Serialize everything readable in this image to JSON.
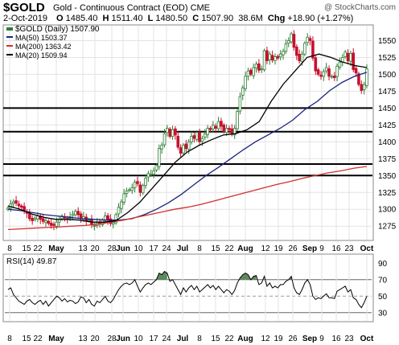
{
  "header": {
    "symbol": "$GOLD",
    "description": "Gold - Continuous Contract (EOD)",
    "exchange": "CME",
    "copyright": "@ StockCharts.com",
    "date": "2-Oct-2019",
    "open_label": "O",
    "open": "1485.40",
    "high_label": "H",
    "high": "1511.40",
    "low_label": "L",
    "low": "1480.50",
    "close_label": "C",
    "close": "1507.90",
    "volume": "38.6M",
    "change_label": "Chg",
    "change": "+18.90 (+1.27%)"
  },
  "legend": {
    "price": "$GOLD (Daily) 1507.90",
    "ma50": "MA(50) 1503.37",
    "ma200": "MA(200) 1363.42",
    "ma20": "MA(20) 1509.94"
  },
  "rsi": {
    "label": "RSI(14) 49.87"
  },
  "colors": {
    "up": "#2e7d32",
    "down": "#c8102e",
    "ma50": "#1a237e",
    "ma200": "#d32f2f",
    "ma20": "#000000",
    "rsi_fill": "#5c8a5c",
    "grid": "#e3e3e3"
  },
  "chart_data": [
    {
      "type": "candlestick",
      "title": "$GOLD (Daily) 1507.90",
      "x_tick_labels": [
        "8",
        "15",
        "22",
        "May",
        "13",
        "20",
        "28",
        "Jun",
        "10",
        "17",
        "24",
        "Jul",
        "8",
        "15",
        "22",
        "Aug",
        "12",
        "19",
        "26",
        "Sep",
        "9",
        "16",
        "23",
        "Oct"
      ],
      "y_ticks": [
        1275,
        1300,
        1325,
        1350,
        1375,
        1400,
        1425,
        1450,
        1475,
        1500,
        1525,
        1550
      ],
      "ylim": [
        1255,
        1572
      ],
      "horizontal_lines": [
        1450,
        1415,
        1367,
        1350
      ],
      "close_approx": [
        1302,
        1308,
        1311,
        1309,
        1305,
        1303,
        1298,
        1294,
        1286,
        1283,
        1287,
        1290,
        1285,
        1282,
        1283,
        1279,
        1276,
        1276,
        1281,
        1285,
        1290,
        1287,
        1286,
        1289,
        1293,
        1297,
        1292,
        1287,
        1289,
        1283,
        1284,
        1277,
        1276,
        1280,
        1279,
        1284,
        1290,
        1284,
        1279,
        1280,
        1292,
        1303,
        1311,
        1323,
        1327,
        1329,
        1332,
        1340,
        1338,
        1325,
        1335,
        1346,
        1353,
        1352,
        1357,
        1365,
        1390,
        1395,
        1412,
        1420,
        1408,
        1418,
        1410,
        1392,
        1383,
        1395,
        1390,
        1400,
        1408,
        1405,
        1414,
        1400,
        1405,
        1412,
        1420,
        1418,
        1425,
        1420,
        1430,
        1423,
        1415,
        1420,
        1418,
        1412,
        1420,
        1445,
        1467,
        1480,
        1497,
        1505,
        1500,
        1510,
        1515,
        1506,
        1508,
        1535,
        1520,
        1530,
        1521,
        1526,
        1524,
        1530,
        1534,
        1545,
        1550,
        1560,
        1540,
        1528,
        1520,
        1530,
        1546,
        1555,
        1550,
        1524,
        1505,
        1500,
        1497,
        1504,
        1510,
        1497,
        1497,
        1495,
        1512,
        1518,
        1525,
        1533,
        1520,
        1531,
        1507,
        1502,
        1485,
        1476,
        1485,
        1507.9
      ],
      "series": [
        {
          "name": "MA(50)",
          "values_approx": [
            1300,
            1298,
            1295,
            1292,
            1290,
            1288,
            1286,
            1285,
            1284,
            1284,
            1286,
            1292,
            1300,
            1310,
            1322,
            1336,
            1350,
            1362,
            1375,
            1388,
            1400,
            1410,
            1420,
            1432,
            1448,
            1460,
            1476,
            1488,
            1497,
            1503
          ]
        },
        {
          "name": "MA(200)",
          "values_approx": [
            1270,
            1271,
            1272,
            1273,
            1274,
            1275,
            1276,
            1278,
            1281,
            1284,
            1288,
            1292,
            1296,
            1300,
            1303,
            1307,
            1312,
            1317,
            1322,
            1327,
            1332,
            1337,
            1341,
            1346,
            1350,
            1354,
            1357,
            1361,
            1363.4
          ]
        },
        {
          "name": "MA(20)",
          "values_approx": [
            1305,
            1300,
            1293,
            1288,
            1285,
            1285,
            1284,
            1281,
            1281,
            1283,
            1295,
            1310,
            1330,
            1350,
            1370,
            1385,
            1395,
            1403,
            1410,
            1412,
            1418,
            1430,
            1460,
            1485,
            1505,
            1525,
            1530,
            1525,
            1518,
            1513,
            1510
          ]
        }
      ]
    },
    {
      "type": "line",
      "title": "RSI(14) 49.87",
      "y_ticks": [
        30,
        50,
        70,
        90
      ],
      "ylim": [
        20,
        100
      ],
      "reference_lines": [
        70,
        50,
        30
      ],
      "values_approx": [
        58,
        60,
        52,
        48,
        44,
        42,
        40,
        44,
        46,
        42,
        40,
        43,
        45,
        40,
        44,
        38,
        42,
        46,
        50,
        48,
        44,
        47,
        43,
        45,
        44,
        41,
        43,
        49,
        48,
        42,
        46,
        40,
        38,
        44,
        42,
        46,
        50,
        44,
        42,
        46,
        52,
        58,
        62,
        65,
        66,
        64,
        66,
        70,
        62,
        55,
        60,
        64,
        66,
        64,
        67,
        70,
        78,
        76,
        80,
        78,
        68,
        70,
        64,
        58,
        52,
        60,
        55,
        60,
        63,
        58,
        62,
        55,
        58,
        61,
        64,
        60,
        63,
        58,
        62,
        58,
        54,
        58,
        56,
        52,
        57,
        66,
        72,
        76,
        78,
        76,
        70,
        74,
        75,
        64,
        66,
        74,
        62,
        66,
        60,
        62,
        60,
        64,
        64,
        68,
        70,
        74,
        60,
        54,
        52,
        58,
        66,
        70,
        64,
        50,
        46,
        48,
        47,
        50,
        53,
        48,
        48,
        47,
        56,
        58,
        60,
        62,
        55,
        58,
        48,
        46,
        40,
        36,
        42,
        49.87
      ]
    }
  ]
}
